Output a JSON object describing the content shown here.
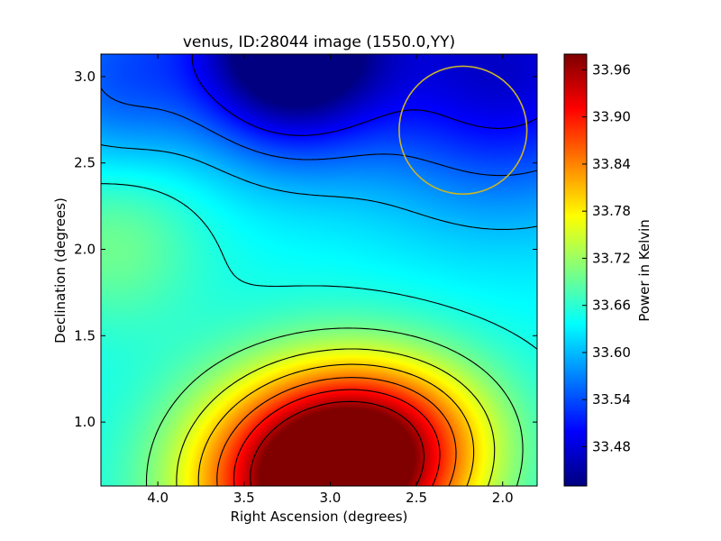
{
  "chart_data": {
    "type": "heatmap",
    "title": "venus, ID:28044 image (1550.0,YY)",
    "xlabel": "Right Ascension (degrees)",
    "ylabel": "Declination (degrees)",
    "xlim": [
      4.33,
      1.8
    ],
    "ylim": [
      0.63,
      3.13
    ],
    "x_ticks": [
      4.0,
      3.5,
      3.0,
      2.5,
      2.0
    ],
    "x_tick_labels": [
      "4.0",
      "3.5",
      "3.0",
      "2.5",
      "2.0"
    ],
    "y_ticks": [
      1.0,
      1.5,
      2.0,
      2.5,
      3.0
    ],
    "y_tick_labels": [
      "1.0",
      "1.5",
      "2.0",
      "2.5",
      "3.0"
    ],
    "colorbar": {
      "label": "Power in Kelvin",
      "range": [
        33.43,
        33.98
      ],
      "ticks": [
        33.48,
        33.54,
        33.6,
        33.66,
        33.72,
        33.78,
        33.84,
        33.9,
        33.96
      ],
      "tick_labels": [
        "33.48",
        "33.54",
        "33.60",
        "33.66",
        "33.72",
        "33.78",
        "33.84",
        "33.90",
        "33.96"
      ],
      "colormap": "jet"
    },
    "contours": {
      "color": "#000000",
      "levels": [
        33.5,
        33.55,
        33.6,
        33.65,
        33.7,
        33.75,
        33.8,
        33.85,
        33.9,
        33.95
      ]
    },
    "marker_circle": {
      "center": [
        2.23,
        2.69
      ],
      "radius_deg": 0.37,
      "color": "#c8b42a"
    },
    "field_sources": [
      {
        "ra": 3.05,
        "dec": 0.65,
        "amp": 0.4,
        "s_ra": 0.52,
        "s_dec": 0.42
      },
      {
        "ra": 2.65,
        "dec": 0.95,
        "amp": 0.14,
        "s_ra": 0.45,
        "s_dec": 0.32
      },
      {
        "ra": 3.25,
        "dec": 3.15,
        "amp": -0.26,
        "s_ra": 0.4,
        "s_dec": 0.4
      },
      {
        "ra": 2.0,
        "dec": 3.05,
        "amp": -0.17,
        "s_ra": 0.6,
        "s_dec": 0.55
      },
      {
        "ra": 4.25,
        "dec": 3.0,
        "amp": -0.09,
        "s_ra": 0.35,
        "s_dec": 0.4
      },
      {
        "ra": 4.25,
        "dec": 2.05,
        "amp": 0.06,
        "s_ra": 0.35,
        "s_dec": 0.35
      }
    ],
    "field_base": 33.64
  }
}
